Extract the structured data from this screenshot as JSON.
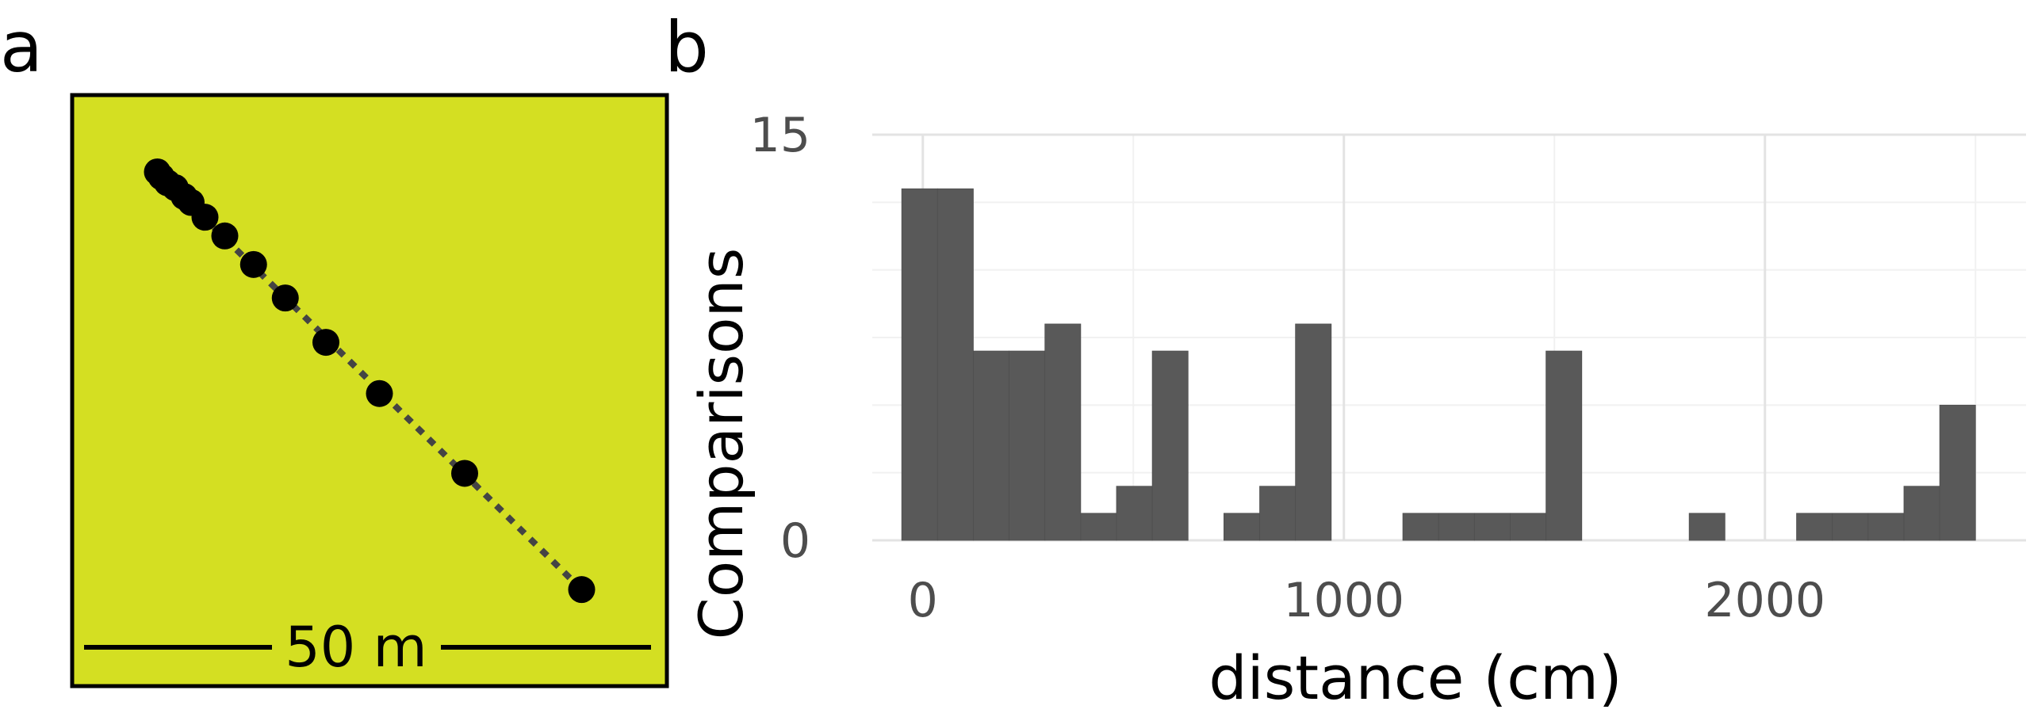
{
  "panels": {
    "a": {
      "letter": "a",
      "scale_label": "50 m",
      "background_color": "#d4df22",
      "point_color": "#000000",
      "line_color": "#444444"
    },
    "b": {
      "letter": "b"
    }
  },
  "chart_data": [
    {
      "type": "scatter",
      "panel": "a",
      "description_role": "sampling transect",
      "xlim": [
        0,
        60
      ],
      "ylim": [
        0,
        60
      ],
      "points": [
        {
          "x": 8.6,
          "y": 52.2
        },
        {
          "x": 9.0,
          "y": 51.7
        },
        {
          "x": 9.6,
          "y": 51.1
        },
        {
          "x": 10.4,
          "y": 50.6
        },
        {
          "x": 11.3,
          "y": 49.7
        },
        {
          "x": 12.0,
          "y": 49.1
        },
        {
          "x": 13.4,
          "y": 47.6
        },
        {
          "x": 15.4,
          "y": 45.7
        },
        {
          "x": 18.3,
          "y": 42.8
        },
        {
          "x": 21.5,
          "y": 39.4
        },
        {
          "x": 25.6,
          "y": 34.9
        },
        {
          "x": 31.0,
          "y": 29.7
        },
        {
          "x": 39.6,
          "y": 21.6
        },
        {
          "x": 51.4,
          "y": 9.8
        }
      ],
      "scale_bar_m": 50
    },
    {
      "type": "bar",
      "panel": "b",
      "xlabel": "distance (cm)",
      "ylabel": "Comparisons",
      "xlim": [
        -120,
        2620
      ],
      "ylim": [
        0,
        15
      ],
      "x_ticks": [
        0,
        1000,
        2000
      ],
      "x_tick_labels": [
        "0",
        "1000",
        "2000"
      ],
      "y_ticks": [
        0,
        15
      ],
      "y_tick_labels": [
        "0",
        "15"
      ],
      "x_minor_gridlines": [
        500,
        1500,
        2500
      ],
      "y_minor_gridlines": [
        2.5,
        5,
        7.5,
        10,
        12.5
      ],
      "bin_width": 85,
      "bar_color": "#595959",
      "grid": true,
      "bins": [
        {
          "start": -50,
          "value": 13
        },
        {
          "start": 35,
          "value": 13
        },
        {
          "start": 120,
          "value": 7
        },
        {
          "start": 205,
          "value": 7
        },
        {
          "start": 290,
          "value": 8
        },
        {
          "start": 375,
          "value": 1
        },
        {
          "start": 460,
          "value": 2
        },
        {
          "start": 545,
          "value": 7
        },
        {
          "start": 630,
          "value": 0
        },
        {
          "start": 715,
          "value": 1
        },
        {
          "start": 800,
          "value": 2
        },
        {
          "start": 885,
          "value": 8
        },
        {
          "start": 970,
          "value": 0
        },
        {
          "start": 1055,
          "value": 0
        },
        {
          "start": 1140,
          "value": 1
        },
        {
          "start": 1225,
          "value": 1
        },
        {
          "start": 1310,
          "value": 1
        },
        {
          "start": 1395,
          "value": 1
        },
        {
          "start": 1480,
          "value": 7
        },
        {
          "start": 1565,
          "value": 0
        },
        {
          "start": 1650,
          "value": 0
        },
        {
          "start": 1735,
          "value": 0
        },
        {
          "start": 1820,
          "value": 1
        },
        {
          "start": 1905,
          "value": 0
        },
        {
          "start": 1990,
          "value": 0
        },
        {
          "start": 2075,
          "value": 1
        },
        {
          "start": 2160,
          "value": 1
        },
        {
          "start": 2245,
          "value": 1
        },
        {
          "start": 2330,
          "value": 2
        },
        {
          "start": 2415,
          "value": 5
        }
      ]
    }
  ]
}
